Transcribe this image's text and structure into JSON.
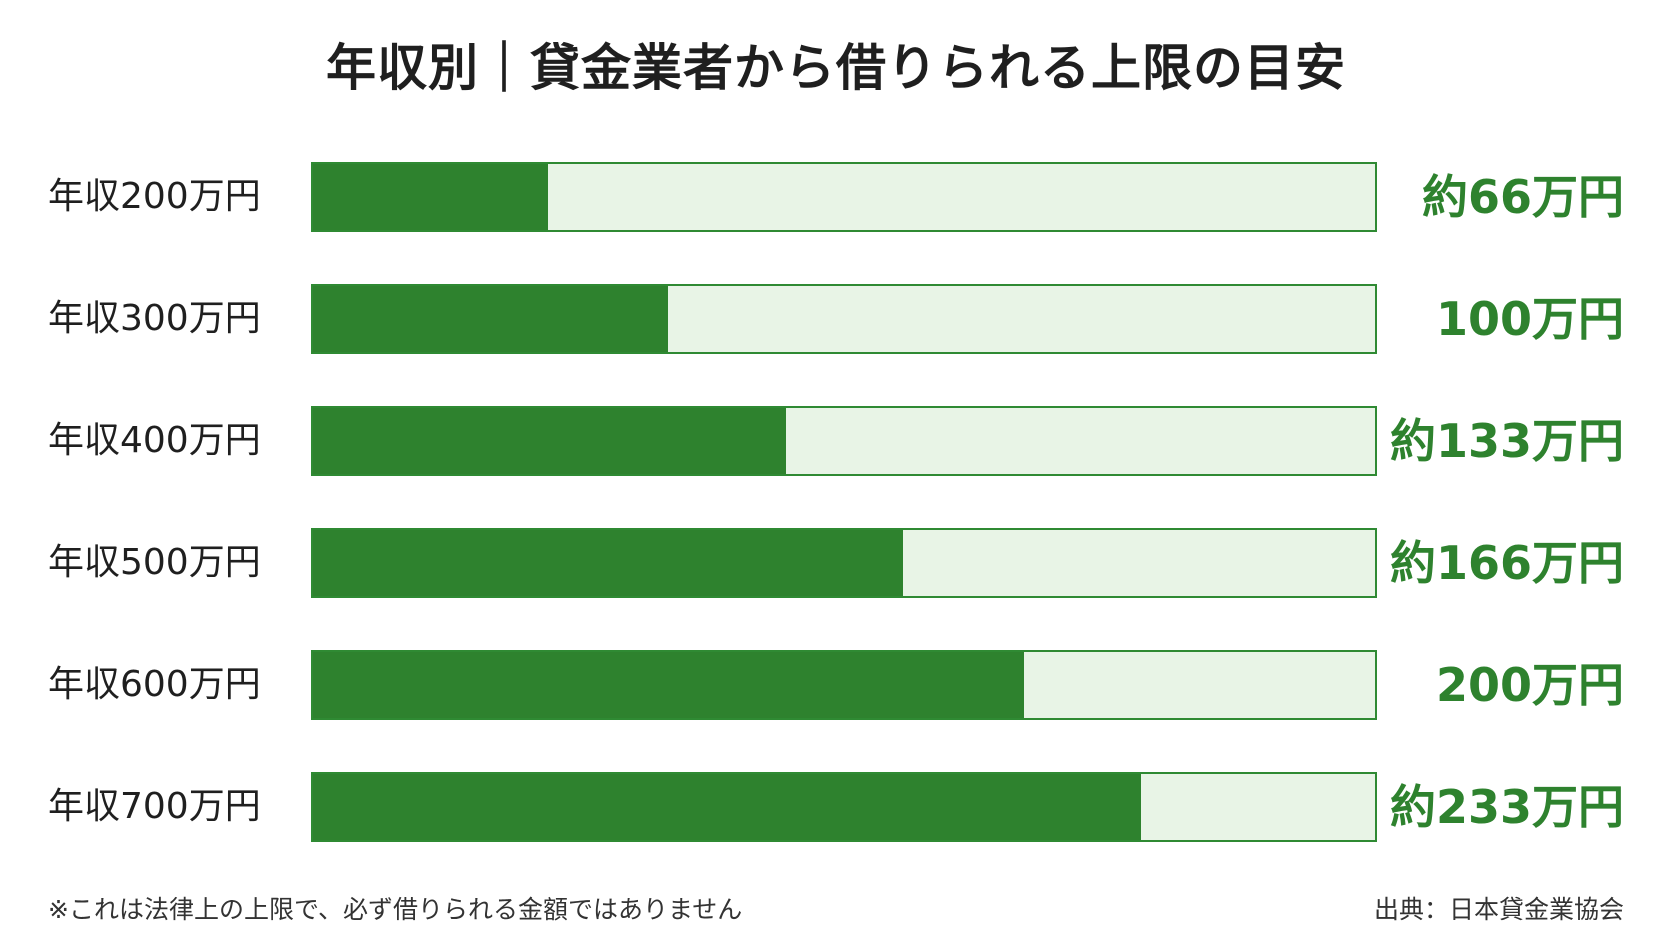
{
  "title": "年収別｜貸金業者から借りられる上限の目安",
  "chart_data": {
    "type": "bar",
    "orientation": "horizontal",
    "title": "年収別｜貸金業者から借りられる上限の目安",
    "categories": [
      "年収200万円",
      "年収300万円",
      "年収400万円",
      "年収500万円",
      "年収600万円",
      "年収700万円"
    ],
    "values": [
      66,
      100,
      133,
      166,
      200,
      233
    ],
    "value_labels": [
      "約66万円",
      "100万円",
      "約133万円",
      "約166万円",
      "200万円",
      "約233万円"
    ],
    "xlim": [
      0,
      300
    ],
    "grid": false,
    "legend": "none",
    "colors": {
      "fill": "#2e822e",
      "track": "#e8f4e6",
      "border": "#2f8a33",
      "value_text": "#2e822e"
    }
  },
  "footer": {
    "note": "※これは法律上の上限で、必ず借りられる金額ではありません",
    "source": "出典：日本貸金業協会"
  }
}
